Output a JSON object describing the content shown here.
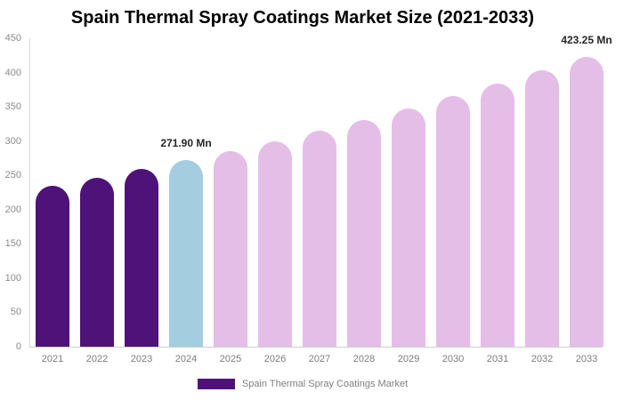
{
  "title": "Spain Thermal Spray Coatings Market Size (2021-2033)",
  "legend": {
    "label": "Spain Thermal Spray Coatings Market",
    "swatch_color": "#4E1278"
  },
  "chart_data": {
    "type": "bar",
    "title": "Spain Thermal Spray Coatings Market Size (2021-2033)",
    "unit": "Mn",
    "categories": [
      "2021",
      "2022",
      "2023",
      "2024",
      "2025",
      "2026",
      "2027",
      "2028",
      "2029",
      "2030",
      "2031",
      "2032",
      "2033"
    ],
    "values": [
      234.6,
      246.4,
      258.9,
      271.9,
      285.6,
      300.0,
      315.1,
      331.0,
      347.7,
      365.2,
      383.6,
      402.9,
      423.25
    ],
    "bar_colors": [
      "#4E1278",
      "#4E1278",
      "#4E1278",
      "#A5CDE0",
      "#E5BEE8",
      "#E5BEE8",
      "#E5BEE8",
      "#E5BEE8",
      "#E5BEE8",
      "#E5BEE8",
      "#E5BEE8",
      "#E5BEE8",
      "#E5BEE8"
    ],
    "segment_colors": {
      "historical": "#4E1278",
      "base_year": "#A5CDE0",
      "forecast": "#E5BEE8"
    },
    "annotations": [
      {
        "category": "2024",
        "text": "271.90 Mn"
      },
      {
        "category": "2033",
        "text": "423.25 Mn"
      }
    ],
    "xlabel": "",
    "ylabel": "",
    "ylim": [
      0,
      450
    ],
    "yticks": [
      0,
      50,
      100,
      150,
      200,
      250,
      300,
      350,
      400,
      450
    ],
    "grid": false,
    "legend_position": "bottom-center",
    "legend_entries": [
      "Spain Thermal Spray Coatings Market"
    ]
  }
}
